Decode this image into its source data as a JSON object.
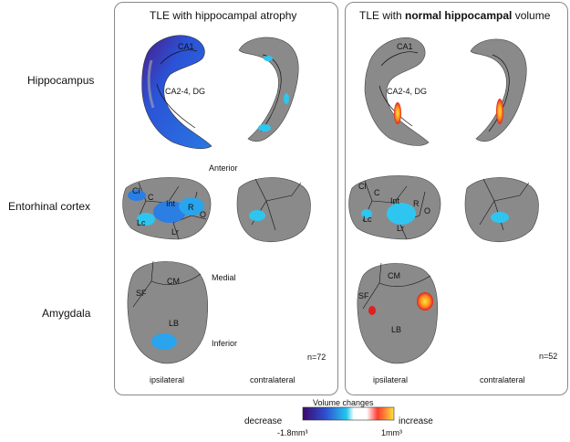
{
  "panels": {
    "left": {
      "title": "TLE with hippocampal atrophy",
      "n": "n=72"
    },
    "right": {
      "title_pre": "TLE with ",
      "title_bold": "normal hippocampal",
      "title_post": " volume",
      "n": "n=52"
    },
    "col_ipsi": "ipsilateral",
    "col_contra": "contralateral"
  },
  "rows": {
    "hippocampus": "Hippocampus",
    "entorhinal": "Entorhinal cortex",
    "amygdala": "Amygdala"
  },
  "labels": {
    "ca1": "CA1",
    "ca24": "CA2-4, DG",
    "cl": "Cl",
    "c": "C",
    "int": "Int",
    "r": "R",
    "o": "O",
    "lc": "Lc",
    "lr": "Lr",
    "cm": "CM",
    "sf": "SF",
    "lb": "LB",
    "anterior": "Anterior",
    "medial": "Medial",
    "inferior": "Inferior"
  },
  "colorbar": {
    "title": "Volume changes",
    "left": "decrease",
    "right": "increase",
    "min": "-1.8mm³",
    "max": "1mm³",
    "colors": [
      "#3b0a6b",
      "#2f4fd0",
      "#22c7ee",
      "#ffffff",
      "#ff3b2f",
      "#ffe23a"
    ]
  }
}
